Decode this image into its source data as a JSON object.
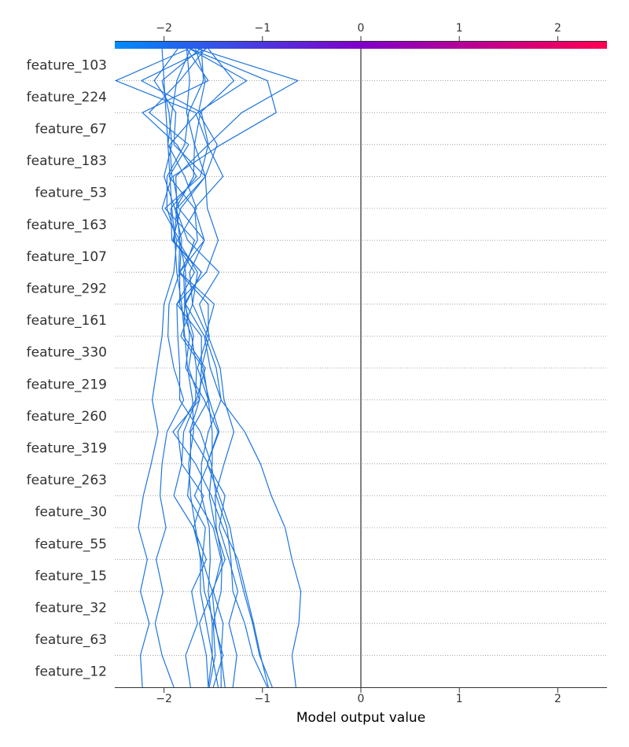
{
  "chart_data": {
    "type": "line",
    "subtype": "shap-decision-plot",
    "xlabel": "Model output value",
    "xlim": [
      -2.5,
      2.5
    ],
    "x_ticks": [
      -2,
      -1,
      0,
      1,
      2
    ],
    "x_tick_labels": [
      "−2",
      "−1",
      "0",
      "1",
      "2"
    ],
    "base_value": 0,
    "colorbar": {
      "low_color": "#008bfb",
      "mid_color": "#8000c8",
      "high_color": "#ff0051"
    },
    "line_color": "#1e75e0",
    "grid": "dotted-horizontal",
    "features_top_to_bottom": [
      "feature_103",
      "feature_224",
      "feature_67",
      "feature_183",
      "feature_53",
      "feature_163",
      "feature_107",
      "feature_292",
      "feature_161",
      "feature_330",
      "feature_219",
      "feature_260",
      "feature_319",
      "feature_263",
      "feature_30",
      "feature_55",
      "feature_15",
      "feature_32",
      "feature_63",
      "feature_12"
    ],
    "series_note": "Each series lists the cumulative model output at rows bottom (start) to top (end).",
    "series": [
      {
        "values": [
          -2.22,
          -2.24,
          -2.15,
          -2.24,
          -2.17,
          -2.26,
          -2.21,
          -2.13,
          -2.06,
          -2.12,
          -2.07,
          -2.02,
          -2.0,
          -1.9,
          -1.87,
          -1.97,
          -1.97,
          -1.79,
          -1.75,
          -1.6,
          -1.62
        ]
      },
      {
        "values": [
          -1.9,
          -2.02,
          -2.09,
          -2.01,
          -2.08,
          -1.98,
          -2.04,
          -2.02,
          -1.97,
          -1.8,
          -1.9,
          -1.96,
          -1.95,
          -1.84,
          -1.82,
          -1.89,
          -2.0,
          -1.92,
          -1.95,
          -2.02,
          -1.63
        ]
      },
      {
        "values": [
          -1.73,
          -1.78,
          -1.66,
          -1.72,
          -1.57,
          -1.7,
          -1.6,
          -1.82,
          -1.8,
          -1.67,
          -1.58,
          -1.8,
          -1.79,
          -1.8,
          -1.69,
          -1.99,
          -1.63,
          -1.55,
          -1.62,
          -2.23,
          -1.57
        ]
      },
      {
        "values": [
          -1.38,
          -1.42,
          -1.48,
          -1.51,
          -1.61,
          -1.58,
          -1.76,
          -1.73,
          -1.73,
          -1.55,
          -1.6,
          -1.83,
          -1.71,
          -1.74,
          -1.59,
          -1.69,
          -1.95,
          -1.75,
          -2.15,
          -1.84,
          -1.58
        ]
      },
      {
        "values": [
          -1.5,
          -1.4,
          -1.49,
          -1.59,
          -1.62,
          -1.7,
          -1.9,
          -1.82,
          -1.86,
          -1.68,
          -1.67,
          -1.72,
          -1.84,
          -1.84,
          -1.66,
          -1.69,
          -1.4,
          -1.56,
          -1.68,
          -2.49,
          -1.75
        ]
      },
      {
        "values": [
          -0.94,
          -1.02,
          -1.09,
          -1.17,
          -1.25,
          -1.4,
          -1.52,
          -1.68,
          -1.91,
          -1.64,
          -1.62,
          -1.62,
          -1.87,
          -1.69,
          -1.9,
          -1.87,
          -1.58,
          -1.9,
          -1.88,
          -2.1,
          -1.86
        ]
      },
      {
        "values": [
          -1.55,
          -1.57,
          -1.64,
          -1.51,
          -1.38,
          -1.48,
          -1.54,
          -1.51,
          -1.51,
          -1.55,
          -1.66,
          -1.56,
          -1.71,
          -1.66,
          -1.86,
          -1.67,
          -1.79,
          -1.96,
          -1.92,
          -1.87,
          -1.73
        ]
      },
      {
        "values": [
          -1.42,
          -1.42,
          -1.4,
          -1.5,
          -1.42,
          -1.5,
          -1.69,
          -1.55,
          -1.74,
          -1.64,
          -1.75,
          -1.7,
          -1.79,
          -1.62,
          -1.92,
          -1.93,
          -1.67,
          -1.87,
          -2.22,
          -1.55,
          -1.77
        ]
      },
      {
        "values": [
          -1.3,
          -1.26,
          -1.34,
          -1.25,
          -1.34,
          -1.44,
          -1.38,
          -1.56,
          -1.45,
          -1.59,
          -1.78,
          -1.74,
          -1.78,
          -1.62,
          -1.91,
          -1.83,
          -1.58,
          -1.46,
          -1.65,
          -1.58,
          -1.68
        ]
      },
      {
        "values": [
          -0.9,
          -1.03,
          -1.1,
          -1.19,
          -1.27,
          -1.33,
          -1.44,
          -1.56,
          -1.44,
          -1.54,
          -1.62,
          -1.54,
          -1.64,
          -1.44,
          -1.76,
          -1.88,
          -1.7,
          -1.69,
          -1.63,
          -1.29,
          -1.55
        ]
      },
      {
        "values": [
          -0.66,
          -0.7,
          -0.63,
          -0.61,
          -0.7,
          -0.77,
          -0.91,
          -1.02,
          -1.18,
          -1.42,
          -1.53,
          -1.59,
          -1.78,
          -1.78,
          -1.84,
          -2.02,
          -1.92,
          -1.94,
          -1.66,
          -1.16,
          -1.74
        ]
      },
      {
        "values": [
          -1.54,
          -1.48,
          -1.5,
          -1.42,
          -1.41,
          -1.47,
          -1.48,
          -1.39,
          -1.29,
          -1.39,
          -1.43,
          -1.55,
          -1.55,
          -1.85,
          -1.84,
          -1.87,
          -1.88,
          -1.55,
          -1.21,
          -0.64,
          -1.66
        ]
      },
      {
        "values": [
          -1.55,
          -1.51,
          -1.51,
          -1.55,
          -1.53,
          -1.54,
          -1.62,
          -1.62,
          -1.55,
          -1.42,
          -1.47,
          -1.58,
          -1.49,
          -1.84,
          -1.59,
          -1.85,
          -1.91,
          -1.42,
          -0.86,
          -0.95,
          -1.73
        ]
      },
      {
        "values": [
          -0.95,
          -1.1,
          -1.18,
          -1.3,
          -1.32,
          -1.36,
          -1.47,
          -1.52,
          -1.63,
          -1.84,
          -1.84,
          -1.86,
          -1.87,
          -1.57,
          -1.45,
          -1.56,
          -1.58,
          -1.69,
          -1.77,
          -1.74,
          -1.77
        ]
      },
      {
        "values": [
          -1.45,
          -1.51,
          -1.57,
          -1.63,
          -1.63,
          -1.68,
          -1.73,
          -1.75,
          -1.7,
          -1.71,
          -1.76,
          -1.79,
          -1.82,
          -1.87,
          -1.89,
          -1.92,
          -1.94,
          -1.96,
          -1.98,
          -2.0,
          -2.02
        ]
      }
    ]
  }
}
